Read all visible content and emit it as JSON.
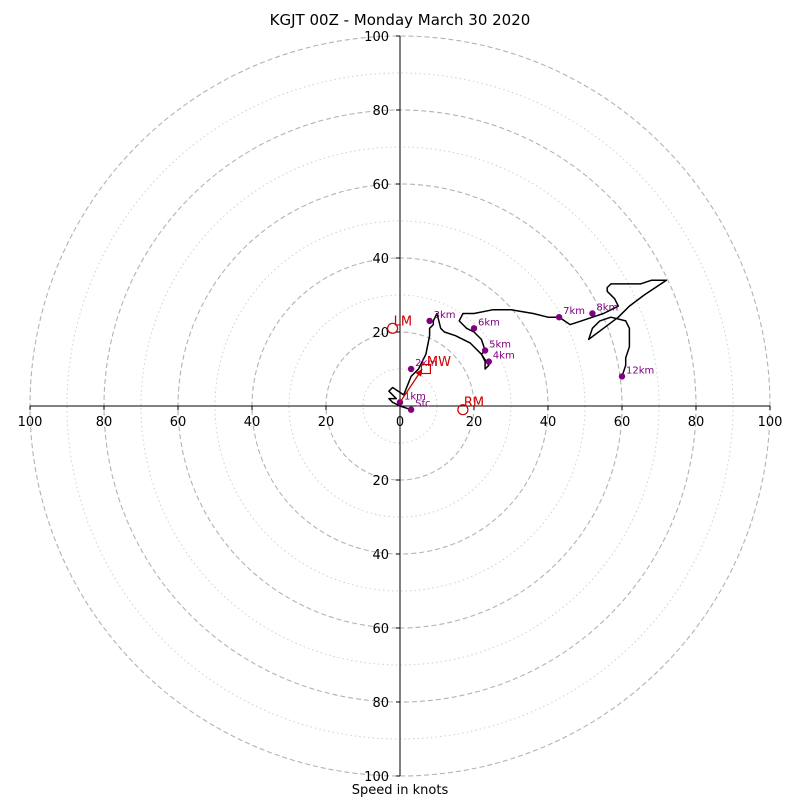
{
  "chart_data": {
    "type": "hodograph",
    "title": "KGJT 00Z - Monday March 30 2020",
    "xlabel": "Speed in knots",
    "ylabel": "",
    "xlim": [
      -100,
      100
    ],
    "ylim": [
      -100,
      100
    ],
    "rings_major": [
      20,
      40,
      60,
      80,
      100
    ],
    "rings_minor": [
      10,
      30,
      50,
      70,
      90
    ],
    "x_tick_labels": [
      "100",
      "80",
      "60",
      "40",
      "20",
      "0",
      "20",
      "40",
      "60",
      "80",
      "100"
    ],
    "y_tick_labels": [
      "100",
      "80",
      "60",
      "40",
      "20",
      "20",
      "40",
      "60",
      "80",
      "100"
    ],
    "trace": [
      [
        3,
        -1
      ],
      [
        0,
        0
      ],
      [
        -2,
        1
      ],
      [
        -3,
        2
      ],
      [
        -1,
        2
      ],
      [
        -3,
        4
      ],
      [
        -2,
        5
      ],
      [
        1,
        3
      ],
      [
        3,
        8
      ],
      [
        5,
        10
      ],
      [
        7,
        14
      ],
      [
        8,
        19
      ],
      [
        8,
        21
      ],
      [
        9,
        22
      ],
      [
        9,
        23
      ],
      [
        10,
        25
      ],
      [
        11,
        21
      ],
      [
        12,
        20
      ],
      [
        15,
        19
      ],
      [
        19,
        17
      ],
      [
        22,
        14
      ],
      [
        24,
        11
      ],
      [
        23,
        10
      ],
      [
        23,
        12
      ],
      [
        22,
        14
      ],
      [
        23,
        15
      ],
      [
        22,
        18
      ],
      [
        20,
        20
      ],
      [
        18,
        21
      ],
      [
        17,
        22
      ],
      [
        16,
        23
      ],
      [
        17,
        25
      ],
      [
        20,
        25
      ],
      [
        25,
        26
      ],
      [
        30,
        26
      ],
      [
        36,
        25
      ],
      [
        40,
        24
      ],
      [
        43,
        24
      ],
      [
        46,
        22
      ],
      [
        49,
        23
      ],
      [
        52,
        24
      ],
      [
        55,
        25
      ],
      [
        57,
        26
      ],
      [
        59,
        27
      ],
      [
        58,
        29
      ],
      [
        56,
        31
      ],
      [
        56,
        32
      ],
      [
        57,
        33
      ],
      [
        61,
        33
      ],
      [
        65,
        33
      ],
      [
        68,
        34
      ],
      [
        72,
        34
      ],
      [
        66,
        30
      ],
      [
        62,
        27
      ],
      [
        59,
        24
      ],
      [
        55,
        21
      ],
      [
        51,
        18
      ],
      [
        52,
        21
      ],
      [
        54,
        23
      ],
      [
        57,
        24
      ],
      [
        61,
        23
      ],
      [
        62,
        21
      ],
      [
        62,
        18
      ],
      [
        62,
        16
      ],
      [
        61,
        13
      ],
      [
        61,
        11
      ],
      [
        60,
        8
      ]
    ],
    "markers": [
      {
        "label": "Sfc",
        "x": 3,
        "y": -1
      },
      {
        "label": "1km",
        "x": 0,
        "y": 1
      },
      {
        "label": "2km",
        "x": 3,
        "y": 10
      },
      {
        "label": "3km",
        "x": 8,
        "y": 23
      },
      {
        "label": "4km",
        "x": 24,
        "y": 12
      },
      {
        "label": "5km",
        "x": 23,
        "y": 15
      },
      {
        "label": "6km",
        "x": 20,
        "y": 21
      },
      {
        "label": "7km",
        "x": 43,
        "y": 24
      },
      {
        "label": "8km",
        "x": 52,
        "y": 25
      },
      {
        "label": "12km",
        "x": 60,
        "y": 8
      }
    ],
    "storm_motion": [
      {
        "label": "LM",
        "x": -2,
        "y": 21,
        "shape": "circle"
      },
      {
        "label": "MW",
        "x": 7,
        "y": 10,
        "shape": "square"
      },
      {
        "label": "RM",
        "x": 17,
        "y": -1,
        "shape": "circle"
      }
    ],
    "shear_vector": {
      "from": [
        0,
        1
      ],
      "to": [
        6,
        10
      ]
    },
    "grid": true,
    "colors": {
      "trace": "#000000",
      "markers": "#800080",
      "storm_motion": "#cc0000",
      "grid": "#b3b3b3"
    }
  }
}
